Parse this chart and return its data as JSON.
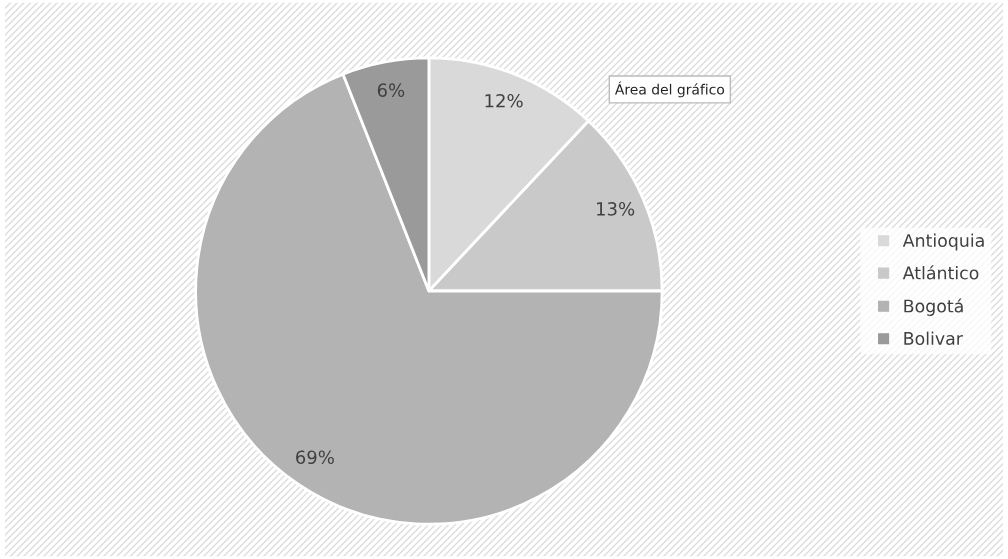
{
  "chart_data": {
    "type": "pie",
    "categories": [
      "Antioquia",
      "Atlántico",
      "Bogotá",
      "Bolivar"
    ],
    "values": [
      12,
      13,
      69,
      6
    ],
    "colors": [
      "#d9d9d9",
      "#c9c9c9",
      "#b3b3b3",
      "#9a9a9a"
    ],
    "value_labels": [
      "12%",
      "13%",
      "69%",
      "6%"
    ],
    "legend": "right",
    "annotations": [
      "Área del gráfico"
    ]
  }
}
